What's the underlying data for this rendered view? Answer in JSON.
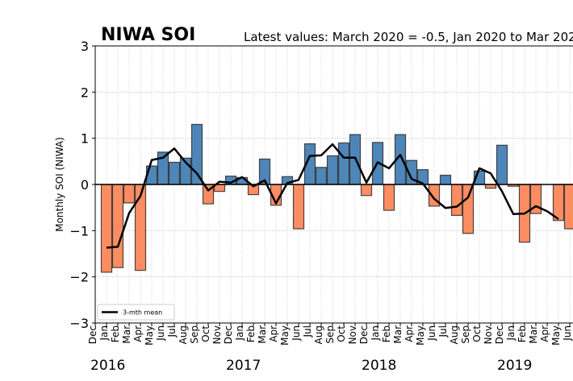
{
  "chart_data": {
    "type": "bar",
    "title": "NIWA SOI",
    "subtitle": "Latest values: March 2020 = -0.5, Jan 2020 to Mar 2020",
    "ylabel": "Monthly SOI (NIWA)",
    "xlabel": "",
    "ylim": [
      -3,
      3
    ],
    "yticks": [
      "3",
      "2",
      "1",
      "0",
      "−1",
      "−2",
      "−3"
    ],
    "ytick_values": [
      3,
      2,
      1,
      0,
      -1,
      -2,
      -3
    ],
    "grid": true,
    "month_labels": [
      "Dec",
      "Jan",
      "Feb",
      "Mar",
      "Apr",
      "May",
      "Jun",
      "Jul",
      "Aug",
      "Sep",
      "Oct",
      "Nov",
      "Dec",
      "Jan",
      "Feb",
      "Mar",
      "Apr",
      "May",
      "Jun",
      "Jul",
      "Aug",
      "Sep",
      "Oct",
      "Nov",
      "Dec",
      "Jan",
      "Feb",
      "Mar",
      "Apr",
      "May",
      "Jun",
      "Jul",
      "Aug",
      "Sep",
      "Oct",
      "Nov",
      "Dec",
      "Jan",
      "Feb",
      "Mar",
      "Apr",
      "May",
      "Jun"
    ],
    "year_labels": [
      {
        "label": "2016",
        "month_index": 1
      },
      {
        "label": "2017",
        "month_index": 13
      },
      {
        "label": "2018",
        "month_index": 25
      },
      {
        "label": "2019",
        "month_index": 37
      }
    ],
    "bar_start_index": 1,
    "values": [
      -1.9,
      -1.8,
      -0.4,
      -1.86,
      0.4,
      0.7,
      0.48,
      0.57,
      1.3,
      -0.42,
      -0.15,
      0.18,
      0.15,
      -0.22,
      0.55,
      -0.45,
      0.17,
      -0.96,
      0.88,
      0.37,
      0.62,
      0.9,
      1.08,
      -0.24,
      0.91,
      -0.56,
      1.08,
      0.52,
      0.32,
      -0.47,
      0.2,
      -0.67,
      -1.06,
      0.29,
      -0.08,
      0.85,
      -0.04,
      -1.25,
      -0.63,
      0,
      -0.78,
      -0.96
    ],
    "series": [
      {
        "name": "3-mth mean",
        "start_index": 2,
        "values": [
          -1.37,
          -1.35,
          -0.62,
          -0.25,
          0.53,
          0.58,
          0.78,
          0.48,
          0.24,
          -0.13,
          0.06,
          0.04,
          0.16,
          -0.04,
          0.09,
          -0.41,
          0.03,
          0.1,
          0.62,
          0.63,
          0.87,
          0.58,
          0.58,
          0.04,
          0.48,
          0.35,
          0.64,
          0.12,
          0.02,
          -0.31,
          -0.51,
          -0.48,
          -0.28,
          0.35,
          0.24,
          -0.15,
          -0.64,
          -0.63,
          -0.47,
          -0.58,
          -0.75
        ]
      }
    ],
    "legend": {
      "label": "3-mth mean",
      "placement": "bottom-left"
    },
    "colors": {
      "positive": "#4f86b9",
      "negative": "#fc8d62",
      "edge": "#222222",
      "line": "#000000"
    }
  }
}
